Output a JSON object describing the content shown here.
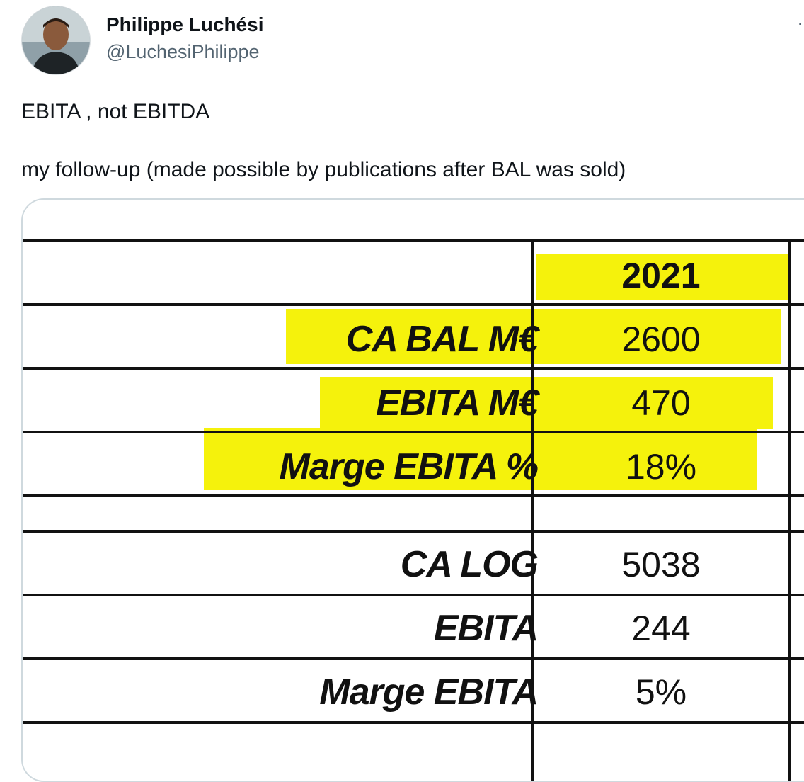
{
  "author": {
    "name": "Philippe Luchési",
    "handle": "@LuchesiPhilippe",
    "avatar_icon": "profile-photo"
  },
  "more_icon": "more-dots-icon",
  "tweet": {
    "lines": [
      "EBITA , not EBITDA",
      "my follow-up (made possible by publications after BAL was sold)"
    ]
  },
  "image_table": {
    "header_year": "2021",
    "highlight_color": "#f5f20c",
    "rows": [
      {
        "label": "CA BAL M€",
        "value": "2600"
      },
      {
        "label": "EBITA M€",
        "value": "470"
      },
      {
        "label": "Marge EBITA %",
        "value": "18%"
      },
      {
        "label": "",
        "value": ""
      },
      {
        "label": "CA LOG",
        "value": "5038"
      },
      {
        "label": "EBITA",
        "value": "244"
      },
      {
        "label": "Marge EBITA",
        "value": "5%"
      }
    ]
  }
}
